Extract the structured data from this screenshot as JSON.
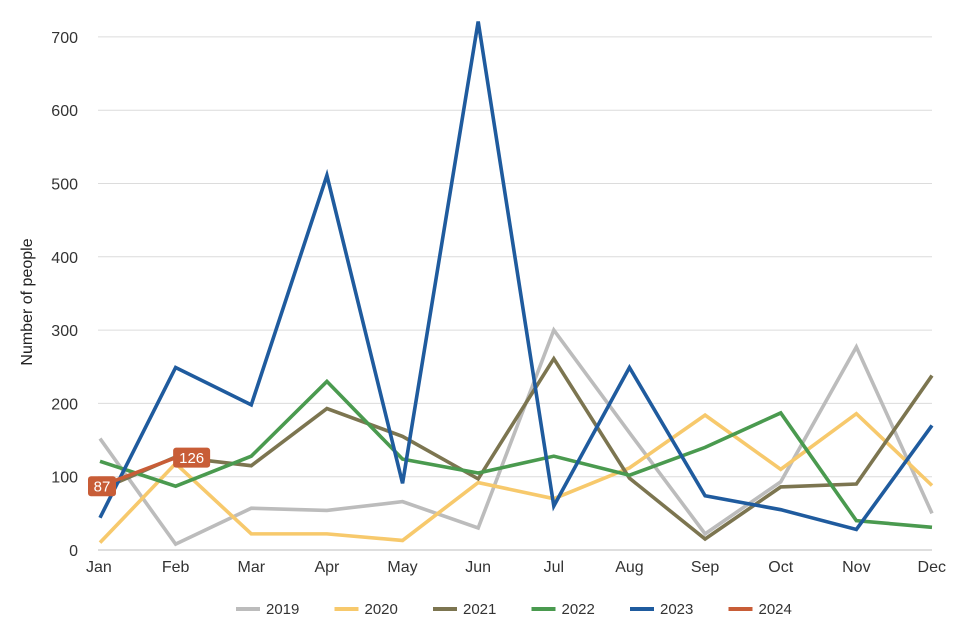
{
  "chart_data": {
    "type": "line",
    "title": "",
    "xlabel": "",
    "ylabel": "Number of people",
    "ylim": [
      0,
      700
    ],
    "yticks": [
      0,
      100,
      200,
      300,
      400,
      500,
      600,
      700
    ],
    "grid": true,
    "legend_position": "bottom",
    "categories": [
      "Jan",
      "Feb",
      "Mar",
      "Apr",
      "May",
      "Jun",
      "Jul",
      "Aug",
      "Sep",
      "Oct",
      "Nov",
      "Dec"
    ],
    "series": [
      {
        "name": "2019",
        "color": "#bcbcbc",
        "values": [
          152,
          8,
          57,
          54,
          66,
          30,
          300,
          160,
          22,
          93,
          277,
          50
        ]
      },
      {
        "name": "2020",
        "color": "#f7c96c",
        "values": [
          10,
          118,
          22,
          22,
          13,
          92,
          70,
          112,
          184,
          110,
          186,
          88
        ]
      },
      {
        "name": "2021",
        "color": "#7c7550",
        "values": [
          82,
          127,
          115,
          193,
          155,
          97,
          261,
          98,
          15,
          86,
          90,
          238
        ]
      },
      {
        "name": "2022",
        "color": "#4a9a4f",
        "values": [
          121,
          87,
          128,
          230,
          124,
          105,
          128,
          102,
          140,
          187,
          40,
          31
        ]
      },
      {
        "name": "2023",
        "color": "#1f5b9e",
        "values": [
          44,
          249,
          198,
          511,
          91,
          721,
          60,
          249,
          74,
          55,
          28,
          170
        ]
      },
      {
        "name": "2024",
        "color": "#c85d37",
        "values": [
          87,
          126,
          null,
          null,
          null,
          null,
          null,
          null,
          null,
          null,
          null,
          null
        ],
        "data_labels": [
          "87",
          "126"
        ]
      }
    ]
  }
}
